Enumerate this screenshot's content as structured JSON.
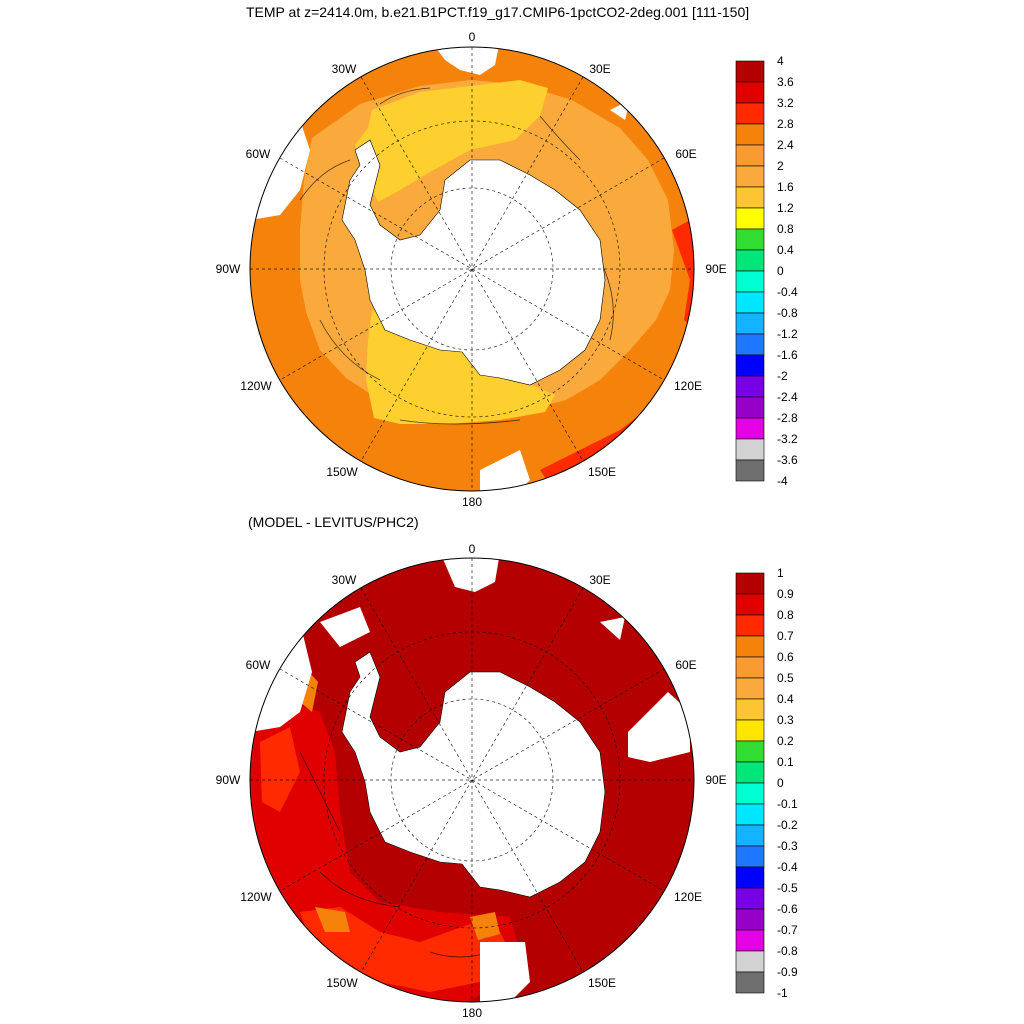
{
  "top_panel": {
    "title": "TEMP at z=2414.0m, b.e21.B1PCT.f19_g17.CMIP6-1pctCO2-2deg.001 [111-150]",
    "colorbar_labels": [
      "4",
      "3.6",
      "3.2",
      "2.8",
      "2.4",
      "2",
      "1.6",
      "1.2",
      "0.8",
      "0.4",
      "0",
      "-0.4",
      "-0.8",
      "-1.2",
      "-1.6",
      "-2",
      "-2.4",
      "-2.8",
      "-3.2",
      "-3.6",
      "-4"
    ],
    "colorbar_colors": [
      "#b40000",
      "#e10000",
      "#ff2a00",
      "#f5820a",
      "#fa9a32",
      "#faaa3c",
      "#fdc531",
      "#ffff00",
      "#32dc32",
      "#00e678",
      "#00ffd2",
      "#00e6ff",
      "#12b4ff",
      "#1e78ff",
      "#0000ff",
      "#7800e6",
      "#9600c8",
      "#e600e6",
      "#d2d2d2",
      "#6e6e6e"
    ],
    "region_colors": {
      "dominant": "#f5820a",
      "mid": "#faaa3c",
      "high": "#fdd02f",
      "warm_edge": "#ff2a00"
    }
  },
  "bottom_panel": {
    "title": "(MODEL - LEVITUS/PHC2)",
    "colorbar_labels": [
      "1",
      "0.9",
      "0.8",
      "0.7",
      "0.6",
      "0.5",
      "0.4",
      "0.3",
      "0.2",
      "0.1",
      "0",
      "-0.1",
      "-0.2",
      "-0.3",
      "-0.4",
      "-0.5",
      "-0.6",
      "-0.7",
      "-0.8",
      "-0.9",
      "-1"
    ],
    "colorbar_colors": [
      "#b40000",
      "#e10000",
      "#ff2a00",
      "#f5820a",
      "#fa9a32",
      "#faaa3c",
      "#fdc531",
      "#ffe600",
      "#32dc32",
      "#00e678",
      "#00ffd2",
      "#00e6ff",
      "#12b4ff",
      "#1e78ff",
      "#0000ff",
      "#7800e6",
      "#9600c8",
      "#e600e6",
      "#d2d2d2",
      "#6e6e6e"
    ],
    "region_colors": {
      "dominant": "#b40000",
      "secondary": "#e10000",
      "tertiary": "#ff2a00",
      "accent": "#f5820a"
    }
  },
  "longitude_labels": {
    "n0": "0",
    "n30e": "30E",
    "n60e": "60E",
    "n90e": "90E",
    "n120e": "120E",
    "n150e": "150E",
    "n180": "180",
    "n150w": "150W",
    "n120w": "120W",
    "n90w": "90W",
    "n60w": "60W",
    "n30w": "30W"
  }
}
